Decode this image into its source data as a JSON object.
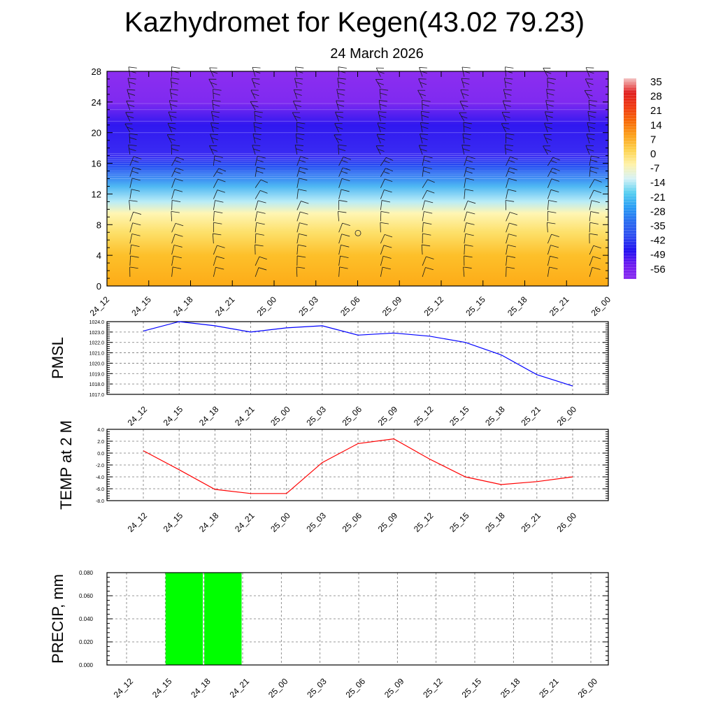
{
  "title": "Kazhydromet for Kegen(43.02 79.23)",
  "subtitle": "24 March 2026",
  "chart_data": [
    {
      "type": "heatmap",
      "name": "temperature-cross-section",
      "ylabel": "",
      "yticks": [
        0,
        4,
        8,
        12,
        16,
        20,
        24,
        28
      ],
      "ylim": [
        0,
        28
      ],
      "xticks": [
        "24_12",
        "24_15",
        "24_18",
        "24_21",
        "25_00",
        "25_03",
        "25_06",
        "25_09",
        "25_12",
        "25_15",
        "25_18",
        "25_21",
        "26_00"
      ],
      "colorbar": {
        "labels": [
          "35",
          "28",
          "21",
          "14",
          "7",
          "0",
          "-7",
          "-14",
          "-21",
          "-28",
          "-35",
          "-42",
          "-49",
          "-56"
        ],
        "stops": [
          {
            "value": 35,
            "color": "#f4c4c4"
          },
          {
            "value": 28,
            "color": "#e02020"
          },
          {
            "value": 21,
            "color": "#f03a12"
          },
          {
            "value": 14,
            "color": "#f76a08"
          },
          {
            "value": 7,
            "color": "#fca21c"
          },
          {
            "value": 0,
            "color": "#fdd24e"
          },
          {
            "value": -7,
            "color": "#fff2a8"
          },
          {
            "value": -14,
            "color": "#d6f2f6"
          },
          {
            "value": -21,
            "color": "#57cff0"
          },
          {
            "value": -28,
            "color": "#2a9df4"
          },
          {
            "value": -35,
            "color": "#2a6cf0"
          },
          {
            "value": -42,
            "color": "#2f4ef0"
          },
          {
            "value": -49,
            "color": "#2010f0"
          },
          {
            "value": -56,
            "color": "#6e1cf0"
          },
          {
            "value": -63,
            "color": "#8a2cf0"
          }
        ]
      },
      "layers": [
        {
          "height": 0,
          "color": "#fdab17"
        },
        {
          "height": 4,
          "color": "#fdc02a"
        },
        {
          "height": 7,
          "color": "#fde06a"
        },
        {
          "height": 9.5,
          "color": "#fff6b4"
        },
        {
          "height": 11,
          "color": "#b9ecf7"
        },
        {
          "height": 13,
          "color": "#4fb8f3"
        },
        {
          "height": 15.5,
          "color": "#1f4ef2"
        },
        {
          "height": 17,
          "color": "#3a2cf2"
        },
        {
          "height": 21,
          "color": "#3018f0"
        },
        {
          "height": 24,
          "color": "#7f2af0"
        },
        {
          "height": 28,
          "color": "#8c2ef0"
        }
      ]
    },
    {
      "type": "line",
      "name": "pmsl",
      "ylabel": "PMSL",
      "x": [
        "24_12",
        "24_15",
        "24_18",
        "24_21",
        "25_00",
        "25_03",
        "25_06",
        "25_09",
        "25_12",
        "25_15",
        "25_18",
        "25_21",
        "26_00"
      ],
      "values": [
        1023.1,
        1024.0,
        1023.6,
        1023.0,
        1023.4,
        1023.6,
        1022.7,
        1022.9,
        1022.6,
        1022.0,
        1020.8,
        1018.9,
        1017.8
      ],
      "ylim": [
        1017.0,
        1024.0
      ],
      "yticks": [
        "1024.0",
        "1023.0",
        "1022.0",
        "1021.0",
        "1020.0",
        "1019.0",
        "1018.0",
        "1017.0"
      ],
      "color": "#0000ff"
    },
    {
      "type": "line",
      "name": "temp-2m",
      "ylabel": "TEMP at 2 M",
      "x": [
        "24_12",
        "24_15",
        "24_18",
        "24_21",
        "25_00",
        "25_03",
        "25_06",
        "25_09",
        "25_12",
        "25_15",
        "25_18",
        "25_21",
        "26_00"
      ],
      "values": [
        0.4,
        -2.8,
        -6.1,
        -6.8,
        -6.8,
        -1.6,
        1.6,
        2.4,
        -1.0,
        -4.0,
        -5.3,
        -4.8,
        -4.0
      ],
      "ylim": [
        -8.0,
        4.0
      ],
      "yticks": [
        "4.0",
        "2.0",
        "0.0",
        "-2.0",
        "-4.0",
        "-6.0",
        "-8.0"
      ],
      "color": "#ff0000"
    },
    {
      "type": "bar",
      "name": "precip",
      "ylabel": "PRECIP, mm",
      "categories": [
        "24_12",
        "24_15",
        "24_18",
        "24_21",
        "25_00",
        "25_03",
        "25_06",
        "25_09",
        "25_12",
        "25_15",
        "25_18",
        "25_21",
        "26_00"
      ],
      "values": [
        0.0,
        0.08,
        0.08,
        0.0,
        0.0,
        0.0,
        0.0,
        0.0,
        0.0,
        0.0,
        0.0,
        0.0,
        0.0
      ],
      "ylim": [
        0.0,
        0.08
      ],
      "yticks": [
        "0.080",
        "0.060",
        "0.040",
        "0.020",
        "0.000"
      ],
      "color": "#00ff00"
    }
  ]
}
